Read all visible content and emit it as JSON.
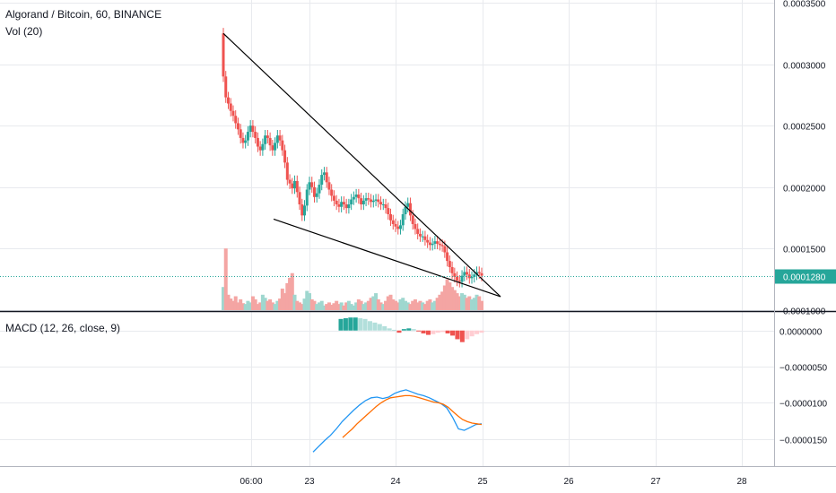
{
  "header": {
    "symbol_line": "Algorand / Bitcoin, 60, BINANCE",
    "volume_line": "Vol (20)",
    "macd_line": "MACD (12, 26, close, 9)"
  },
  "colors": {
    "up": "#26a69a",
    "down": "#ef5350",
    "up_volume": "#9fd7cf",
    "down_volume": "#f4a5a3",
    "macd_line": "#2196f3",
    "signal_line": "#ff6d00",
    "hist_up_strong": "#26a69a",
    "hist_up_weak": "#b2dfdb",
    "hist_down_strong": "#ef5350",
    "hist_down_weak": "#ffcdd2",
    "price_line": "#26a69a",
    "grid": "#e8eaee",
    "trendline": "#000000"
  },
  "chart_data": [
    {
      "type": "candlestick",
      "title": "Algorand / Bitcoin, 60, BINANCE",
      "ylim": [
        0.0001,
        0.00035
      ],
      "y_ticks": [
        "0.0001000",
        "0.0001500",
        "0.0002000",
        "0.0002500",
        "0.0003000",
        "0.0003500"
      ],
      "x_ticks": [
        "06:00",
        "23",
        "24",
        "25",
        "26",
        "27",
        "28"
      ],
      "last_price": "0.0001280",
      "trend_lines": [
        {
          "from": {
            "time": "22 05:00",
            "price": 0.000325
          },
          "to": {
            "time": "25 02:00",
            "price": 0.000111
          }
        },
        {
          "from": {
            "time": "22 09:30",
            "price": 0.000174
          },
          "to": {
            "time": "25 02:00",
            "price": 0.000111
          }
        }
      ],
      "close_series": [
        0.00029,
        0.000273,
        0.000268,
        0.000262,
        0.000258,
        0.000252,
        0.000247,
        0.00024,
        0.000236,
        0.000238,
        0.000245,
        0.00025,
        0.000245,
        0.00024,
        0.000233,
        0.00023,
        0.000235,
        0.000242,
        0.00024,
        0.000234,
        0.00023,
        0.000236,
        0.000242,
        0.000238,
        0.00023,
        0.00022,
        0.000206,
        0.000203,
        0.000199,
        0.000205,
        0.000196,
        0.000186,
        0.000177,
        0.000185,
        0.000198,
        0.000204,
        0.0002,
        0.000192,
        0.000195,
        0.000202,
        0.00021,
        0.000212,
        0.000204,
        0.000198,
        0.000193,
        0.000189,
        0.000186,
        0.000184,
        0.000188,
        0.000186,
        0.000183,
        0.000186,
        0.00019,
        0.000192,
        0.000194,
        0.000191,
        0.000186,
        0.000189,
        0.000191,
        0.00019,
        0.000188,
        0.000189,
        0.00019,
        0.000188,
        0.000186,
        0.000186,
        0.000183,
        0.000178,
        0.000173,
        0.00017,
        0.000168,
        0.000166,
        0.000169,
        0.000178,
        0.000184,
        0.000187,
        0.000177,
        0.00017,
        0.000166,
        0.000162,
        0.00016,
        0.00016,
        0.000157,
        0.000155,
        0.000153,
        0.000154,
        0.000156,
        0.000154,
        0.000153,
        0.000152,
        0.000147,
        0.00014,
        0.000135,
        0.00013,
        0.000127,
        0.000124,
        0.000123,
        0.000128,
        0.000131,
        0.000129,
        0.000126,
        0.000127,
        0.000129,
        0.000131,
        0.00013,
        0.000128
      ],
      "volume_series": [
        0.3,
        0.8,
        0.2,
        0.15,
        0.12,
        0.18,
        0.1,
        0.14,
        0.09,
        0.08,
        0.12,
        0.1,
        0.18,
        0.14,
        0.08,
        0.1,
        0.2,
        0.16,
        0.12,
        0.14,
        0.1,
        0.08,
        0.12,
        0.15,
        0.28,
        0.22,
        0.35,
        0.42,
        0.48,
        0.2,
        0.12,
        0.1,
        0.08,
        0.15,
        0.25,
        0.22,
        0.14,
        0.12,
        0.08,
        0.1,
        0.12,
        0.06,
        0.08,
        0.1,
        0.07,
        0.09,
        0.12,
        0.08,
        0.1,
        0.06,
        0.1,
        0.12,
        0.08,
        0.06,
        0.1,
        0.14,
        0.12,
        0.08,
        0.1,
        0.12,
        0.16,
        0.18,
        0.22,
        0.14,
        0.1,
        0.08,
        0.12,
        0.18,
        0.2,
        0.14,
        0.12,
        0.1,
        0.14,
        0.16,
        0.12,
        0.1,
        0.08,
        0.12,
        0.14,
        0.1,
        0.12,
        0.1,
        0.08,
        0.12,
        0.14,
        0.1,
        0.12,
        0.16,
        0.2,
        0.24,
        0.32,
        0.4,
        0.36,
        0.3,
        0.26,
        0.22,
        0.18,
        0.22,
        0.2,
        0.16,
        0.18,
        0.14,
        0.16,
        0.2,
        0.18,
        0.12
      ]
    },
    {
      "type": "line",
      "title": "MACD (12, 26, close, 9)",
      "ylim": [
        -1.85e-05,
        2.2e-06
      ],
      "y_ticks": [
        "0.0000000",
        "−0.0000050",
        "−0.0000100",
        "−0.0000150"
      ],
      "series": [
        {
          "key": "macd",
          "values": [
            -1.68e-05,
            -1.6e-05,
            -1.52e-05,
            -1.45e-05,
            -1.36e-05,
            -1.26e-05,
            -1.18e-05,
            -1.1e-05,
            -1.03e-05,
            -9.7e-06,
            -9.3e-06,
            -9.2e-06,
            -9.4e-06,
            -9.2e-06,
            -8.7e-06,
            -8.4e-06,
            -8.2e-06,
            -8.5e-06,
            -8.8e-06,
            -9e-06,
            -9.3e-06,
            -9.7e-06,
            -1.01e-05,
            -1.07e-05,
            -1.2e-05,
            -1.36e-05,
            -1.38e-05,
            -1.34e-05,
            -1.3e-05,
            -1.29e-05
          ]
        },
        {
          "key": "signal",
          "values": [
            -1.48e-05,
            -1.42e-05,
            -1.36e-05,
            -1.29e-05,
            -1.23e-05,
            -1.17e-05,
            -1.11e-05,
            -1.05e-05,
            -1e-05,
            -9.6e-06,
            -9.3e-06,
            -9.2e-06,
            -9.1e-06,
            -9e-06,
            -9e-06,
            -9.1e-06,
            -9.3e-06,
            -9.5e-06,
            -9.7e-06,
            -9.9e-06,
            -1e-05,
            -1.02e-05,
            -1.06e-05,
            -1.12e-05,
            -1.18e-05,
            -1.23e-05,
            -1.26e-05,
            -1.28e-05,
            -1.29e-05,
            -1.3e-05
          ]
        },
        {
          "key": "histogram",
          "values": [
            1.6e-06,
            1.7e-06,
            1.8e-06,
            1.8e-06,
            1.7e-06,
            1.6e-06,
            1.3e-06,
            1.1e-06,
            9e-07,
            6e-07,
            3e-07,
            1e-07,
            -3e-07,
            2e-07,
            3e-07,
            2e-07,
            -1e-07,
            -4e-07,
            -6e-07,
            -5e-07,
            -3e-07,
            -2e-07,
            -4e-07,
            -7e-07,
            -1.2e-06,
            -1.6e-06,
            -1.2e-06,
            -8e-07,
            -5e-07,
            -3e-07
          ]
        }
      ]
    }
  ]
}
